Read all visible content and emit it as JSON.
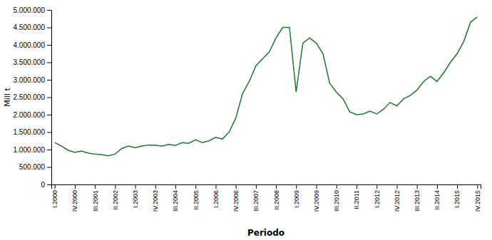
{
  "chart_data": {
    "type": "line",
    "xlabel": "Periodo",
    "ylabel": "Mill t",
    "color": "#1a7a2e",
    "grid": false,
    "categories": [
      "I.2000",
      null,
      null,
      "IV.2000",
      null,
      null,
      "III.2001",
      null,
      null,
      "II.2002",
      null,
      null,
      "I.2003",
      null,
      null,
      "IV.2003",
      null,
      null,
      "III.2004",
      null,
      null,
      "II.2005",
      null,
      null,
      "I.2006",
      null,
      null,
      "IV.2006",
      null,
      null,
      "III.2007",
      null,
      null,
      "II.2008",
      null,
      null,
      "I.2009",
      null,
      null,
      "IV.2009",
      null,
      null,
      "III.2010",
      null,
      null,
      "II.2011",
      null,
      null,
      "I.2012",
      null,
      null,
      "IV.2012",
      null,
      null,
      "III.2013",
      null,
      null,
      "II.2014",
      null,
      null,
      "I.2015",
      null,
      null,
      "IV.2015"
    ],
    "values": [
      1200000,
      1100000,
      980000,
      920000,
      960000,
      900000,
      870000,
      850000,
      820000,
      870000,
      1030000,
      1100000,
      1050000,
      1100000,
      1130000,
      1120000,
      1100000,
      1150000,
      1120000,
      1200000,
      1180000,
      1280000,
      1200000,
      1250000,
      1350000,
      1300000,
      1500000,
      1900000,
      2600000,
      2950000,
      3400000,
      3600000,
      3800000,
      4200000,
      4500000,
      4500000,
      2650000,
      4050000,
      4200000,
      4050000,
      3750000,
      2900000,
      2650000,
      2450000,
      2080000,
      2000000,
      2020000,
      2100000,
      2020000,
      2150000,
      2350000,
      2250000,
      2450000,
      2550000,
      2700000,
      2950000,
      3100000,
      2950000,
      3200000,
      3500000,
      3750000,
      4100000,
      4650000,
      4800000
    ],
    "ylim": [
      0,
      5000000
    ],
    "yticks": [
      0,
      {
        "value": 500000,
        "label": "500.000"
      },
      {
        "value": 1000000,
        "label": "1.000.000"
      },
      {
        "value": 1500000,
        "label": "1.500.000"
      },
      {
        "value": 2000000,
        "label": "2.000.000"
      },
      {
        "value": 2500000,
        "label": "2.500.000"
      },
      {
        "value": 3000000,
        "label": "3.000.000"
      },
      {
        "value": 3500000,
        "label": "3.500.000"
      },
      {
        "value": 4000000,
        "label": "4.000.000"
      },
      {
        "value": 4500000,
        "label": "4.500.000"
      },
      {
        "value": 5000000,
        "label": "5.000.000"
      }
    ]
  }
}
